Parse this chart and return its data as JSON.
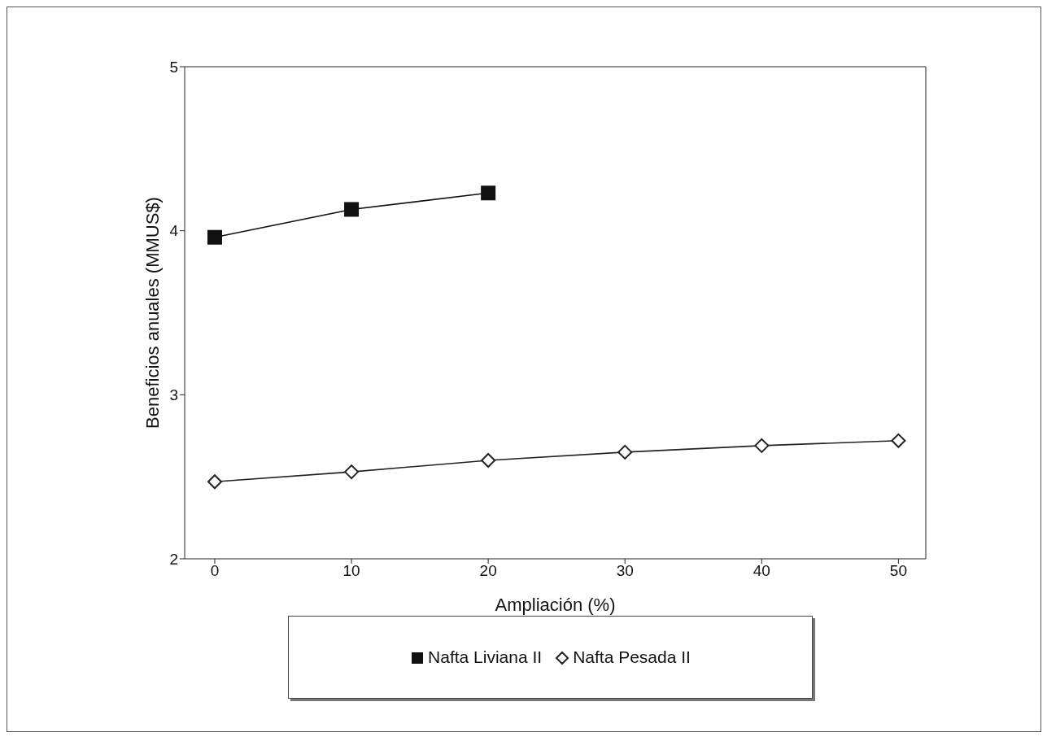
{
  "chart_data": {
    "type": "line",
    "xlabel": "Ampliación (%)",
    "ylabel": "Beneficios anuales (MMUS$)",
    "xlim": [
      -2.2,
      52
    ],
    "xticks": [
      0,
      10,
      20,
      30,
      40,
      50
    ],
    "ylim": [
      2,
      5
    ],
    "yticks": [
      2,
      3,
      4,
      5
    ],
    "legend": "bottom",
    "series": [
      {
        "name": "Nafta Liviana II",
        "color": "#111111",
        "marker": "square",
        "x": [
          0,
          10,
          20
        ],
        "values": [
          3.96,
          4.13,
          4.23
        ]
      },
      {
        "name": "Nafta Pesada II",
        "color": "#222222",
        "marker": "diamond",
        "x": [
          0,
          10,
          20,
          30,
          40,
          50
        ],
        "values": [
          2.47,
          2.53,
          2.6,
          2.65,
          2.69,
          2.72
        ]
      }
    ]
  }
}
